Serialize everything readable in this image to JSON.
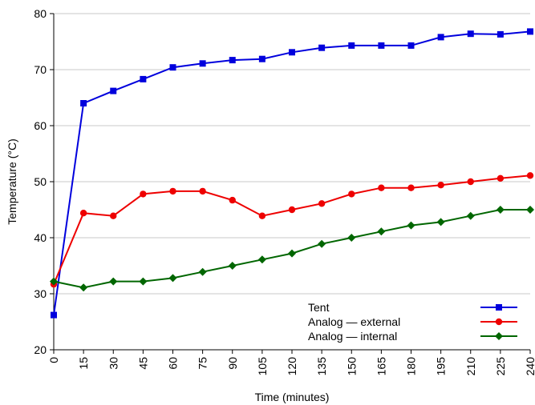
{
  "chart_data": {
    "type": "line",
    "title": "",
    "xlabel": "Time (minutes)",
    "ylabel": "Temperature (°C)",
    "x": [
      0,
      15,
      30,
      45,
      60,
      75,
      90,
      105,
      120,
      135,
      150,
      165,
      180,
      195,
      210,
      225,
      240
    ],
    "xticks": [
      "0",
      "15",
      "30",
      "45",
      "60",
      "75",
      "90",
      "105",
      "120",
      "135",
      "150",
      "165",
      "180",
      "195",
      "210",
      "225",
      "240"
    ],
    "yticks": [
      "20",
      "30",
      "40",
      "50",
      "60",
      "70",
      "80"
    ],
    "xlim": [
      0,
      240
    ],
    "ylim": [
      20,
      80
    ],
    "grid": "horizontal",
    "legend_position": "bottom-right",
    "series": [
      {
        "name": "Tent",
        "color": "#0000dd",
        "marker": "square",
        "values": [
          26.2,
          64,
          66.2,
          68.3,
          70.4,
          71.1,
          71.7,
          71.9,
          73.1,
          73.9,
          74.3,
          74.3,
          74.3,
          75.8,
          76.4,
          76.3,
          76.8
        ]
      },
      {
        "name": "Analog — external",
        "color": "#ee0000",
        "marker": "circle",
        "values": [
          31.7,
          44.4,
          43.9,
          47.8,
          48.3,
          48.3,
          46.7,
          43.9,
          45,
          46.1,
          47.8,
          48.9,
          48.9,
          49.4,
          50,
          50.6,
          51.1
        ]
      },
      {
        "name": "Analog — internal",
        "color": "#006600",
        "marker": "diamond",
        "values": [
          32.2,
          31.1,
          32.2,
          32.2,
          32.8,
          33.9,
          35,
          36.1,
          37.2,
          38.9,
          40,
          41.1,
          42.2,
          42.8,
          43.9,
          45,
          45
        ]
      }
    ]
  }
}
